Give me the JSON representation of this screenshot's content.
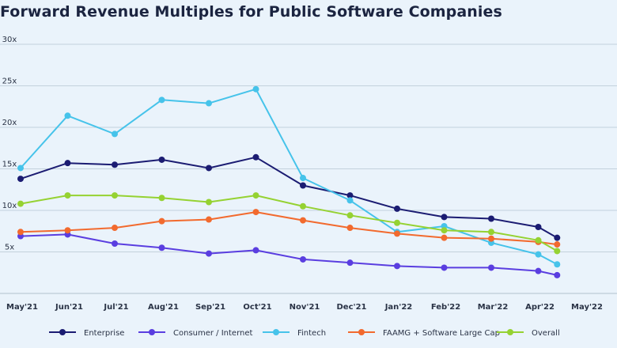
{
  "chart_data": {
    "type": "line",
    "title": "Forward Revenue Multiples for Public Software Companies",
    "xlabel": "",
    "ylabel": "",
    "categories": [
      "May'21",
      "Jun'21",
      "Jul'21",
      "Aug'21",
      "Sep'21",
      "Oct'21",
      "Nov'21",
      "Dec'21",
      "Jan'22",
      "Feb'22",
      "Mar'22",
      "Apr'22",
      "May'22"
    ],
    "y_ticks": [
      {
        "value": 5,
        "label": "5x"
      },
      {
        "value": 10,
        "label": "10x"
      },
      {
        "value": 15,
        "label": "15x"
      },
      {
        "value": 20,
        "label": "20x"
      },
      {
        "value": 25,
        "label": "25x"
      },
      {
        "value": 30,
        "label": "30x"
      }
    ],
    "ylim": [
      0,
      30
    ],
    "grid": true,
    "legend_position": "bottom",
    "series": [
      {
        "name": "Enterprise",
        "color": "#1b1c72",
        "points": [
          {
            "x": 0,
            "y": 13.8
          },
          {
            "x": 1,
            "y": 15.7
          },
          {
            "x": 2,
            "y": 15.5
          },
          {
            "x": 3,
            "y": 16.1
          },
          {
            "x": 4,
            "y": 15.1
          },
          {
            "x": 5,
            "y": 16.4
          },
          {
            "x": 6,
            "y": 13.0
          },
          {
            "x": 7,
            "y": 11.8
          },
          {
            "x": 8,
            "y": 10.2
          },
          {
            "x": 9,
            "y": 9.2
          },
          {
            "x": 10,
            "y": 9.0
          },
          {
            "x": 11,
            "y": 8.0
          },
          {
            "x": 11.4,
            "y": 6.7
          }
        ]
      },
      {
        "name": "Consumer / Internet",
        "color": "#5a3ee0",
        "points": [
          {
            "x": 0,
            "y": 6.9
          },
          {
            "x": 1,
            "y": 7.1
          },
          {
            "x": 2,
            "y": 6.0
          },
          {
            "x": 3,
            "y": 5.5
          },
          {
            "x": 4,
            "y": 4.8
          },
          {
            "x": 5,
            "y": 5.2
          },
          {
            "x": 6,
            "y": 4.1
          },
          {
            "x": 7,
            "y": 3.7
          },
          {
            "x": 8,
            "y": 3.3
          },
          {
            "x": 9,
            "y": 3.1
          },
          {
            "x": 10,
            "y": 3.1
          },
          {
            "x": 11,
            "y": 2.7
          },
          {
            "x": 11.4,
            "y": 2.2
          }
        ]
      },
      {
        "name": "Fintech",
        "color": "#46c3ea",
        "points": [
          {
            "x": 0,
            "y": 15.1
          },
          {
            "x": 1,
            "y": 21.4
          },
          {
            "x": 2,
            "y": 19.2
          },
          {
            "x": 3,
            "y": 23.3
          },
          {
            "x": 4,
            "y": 22.9
          },
          {
            "x": 5,
            "y": 24.6
          },
          {
            "x": 6,
            "y": 13.9
          },
          {
            "x": 7,
            "y": 11.2
          },
          {
            "x": 8,
            "y": 7.4
          },
          {
            "x": 9,
            "y": 8.1
          },
          {
            "x": 10,
            "y": 6.1
          },
          {
            "x": 11,
            "y": 4.7
          },
          {
            "x": 11.4,
            "y": 3.5
          }
        ]
      },
      {
        "name": "FAAMG + Software Large Cap",
        "color": "#f26a2e",
        "points": [
          {
            "x": 0,
            "y": 7.4
          },
          {
            "x": 1,
            "y": 7.6
          },
          {
            "x": 2,
            "y": 7.9
          },
          {
            "x": 3,
            "y": 8.7
          },
          {
            "x": 4,
            "y": 8.9
          },
          {
            "x": 5,
            "y": 9.8
          },
          {
            "x": 6,
            "y": 8.8
          },
          {
            "x": 7,
            "y": 7.9
          },
          {
            "x": 8,
            "y": 7.2
          },
          {
            "x": 9,
            "y": 6.7
          },
          {
            "x": 10,
            "y": 6.6
          },
          {
            "x": 11,
            "y": 6.2
          },
          {
            "x": 11.4,
            "y": 5.9
          }
        ]
      },
      {
        "name": "Overall",
        "color": "#95d232",
        "points": [
          {
            "x": 0,
            "y": 10.8
          },
          {
            "x": 1,
            "y": 11.8
          },
          {
            "x": 2,
            "y": 11.8
          },
          {
            "x": 3,
            "y": 11.5
          },
          {
            "x": 4,
            "y": 11.0
          },
          {
            "x": 5,
            "y": 11.8
          },
          {
            "x": 6,
            "y": 10.5
          },
          {
            "x": 7,
            "y": 9.4
          },
          {
            "x": 8,
            "y": 8.5
          },
          {
            "x": 9,
            "y": 7.6
          },
          {
            "x": 10,
            "y": 7.4
          },
          {
            "x": 11,
            "y": 6.4
          },
          {
            "x": 11.4,
            "y": 5.1
          }
        ]
      }
    ]
  }
}
